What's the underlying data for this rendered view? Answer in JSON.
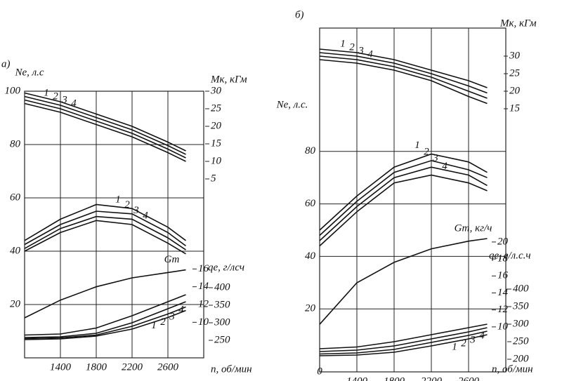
{
  "chart_data": [
    {
      "type": "line",
      "panel": "а)",
      "color": "#111",
      "ylabel": "Ne, л.с",
      "y2label": "Mк, кГм",
      "y4label": "qe, г/лсч",
      "xlabel": "n, об/мин",
      "x": [
        1000,
        1400,
        1800,
        2200,
        2600,
        2800
      ],
      "xlim": [
        1000,
        3000
      ],
      "xticks": [
        1400,
        1800,
        2200,
        2600
      ],
      "ylim": [
        0,
        100
      ],
      "yticks": [
        20,
        40,
        60,
        80,
        100
      ],
      "y2lim": [
        -46,
        30
      ],
      "y2ticks": [
        5,
        10,
        15,
        20,
        25,
        30
      ],
      "y3lim": [
        6,
        36
      ],
      "y3ticks": [
        10,
        12,
        14,
        16
      ],
      "y4lim": [
        200,
        960
      ],
      "y4ticks": [
        250,
        300,
        350,
        400
      ],
      "grid": true,
      "series": [
        {
          "name": "1",
          "axis": "y2",
          "values": [
            29.5,
            27,
            23.5,
            20,
            15.5,
            13
          ]
        },
        {
          "name": "2",
          "axis": "y2",
          "values": [
            28.5,
            26,
            22.5,
            19,
            14.5,
            12
          ]
        },
        {
          "name": "3",
          "axis": "y2",
          "values": [
            27.5,
            25,
            21.5,
            18,
            13.5,
            11
          ]
        },
        {
          "name": "4",
          "axis": "y2",
          "values": [
            26.5,
            24,
            20.5,
            17,
            12.5,
            10
          ]
        },
        {
          "name": "1",
          "axis": "y",
          "values": [
            44,
            52,
            57.5,
            56,
            49,
            44
          ]
        },
        {
          "name": "2",
          "axis": "y",
          "values": [
            42.5,
            50,
            55,
            54,
            47,
            42
          ]
        },
        {
          "name": "3",
          "axis": "y",
          "values": [
            41,
            48.5,
            53,
            52,
            45,
            40.5
          ]
        },
        {
          "name": "4",
          "axis": "y",
          "values": [
            40,
            47,
            51.5,
            50,
            43,
            39
          ]
        },
        {
          "name": "Gт",
          "axis": "y3",
          "values": [
            10.5,
            12.5,
            14,
            15,
            15.6,
            15.9
          ]
        },
        {
          "name": "1",
          "axis": "y4",
          "values": [
            252,
            254,
            262,
            282,
            315,
            335
          ]
        },
        {
          "name": "2",
          "axis": "y4",
          "values": [
            255,
            257,
            265,
            290,
            325,
            345
          ]
        },
        {
          "name": "3",
          "axis": "y4",
          "values": [
            258,
            260,
            270,
            300,
            340,
            360
          ]
        },
        {
          "name": "4",
          "axis": "y4",
          "values": [
            265,
            268,
            285,
            320,
            360,
            380
          ]
        }
      ]
    },
    {
      "type": "line",
      "panel": "б)",
      "color": "#111",
      "ylabel": "Ne, л.с.",
      "y2label": "Mк, кГм",
      "y4label": "qe, г/л.с.ч",
      "xlabel": "n, об/мин",
      "origin_label": "0",
      "x": [
        1000,
        1400,
        1800,
        2200,
        2600,
        2800
      ],
      "xlim": [
        1000,
        3000
      ],
      "xticks": [
        1400,
        1800,
        2200,
        2600
      ],
      "ylim": [
        -4,
        127
      ],
      "yticks": [
        20,
        40,
        60,
        80
      ],
      "y2lim": [
        -60,
        38
      ],
      "y2ticks": [
        15,
        20,
        25,
        30
      ],
      "y3lim": [
        4.7,
        45.2
      ],
      "y3ticks": [
        10,
        12,
        14,
        16,
        18,
        20
      ],
      "y4lim": [
        164,
        1144
      ],
      "y4ticks": [
        200,
        250,
        300,
        350,
        400
      ],
      "grid": true,
      "series": [
        {
          "name": "1",
          "axis": "y2",
          "values": [
            32,
            31,
            29,
            26,
            23,
            21
          ]
        },
        {
          "name": "2",
          "axis": "y2",
          "values": [
            31,
            30,
            28,
            25,
            21.5,
            19.5
          ]
        },
        {
          "name": "3",
          "axis": "y2",
          "values": [
            30,
            29,
            27,
            24,
            20,
            18
          ]
        },
        {
          "name": "4",
          "axis": "y2",
          "values": [
            29,
            28,
            26,
            23,
            18.5,
            16.5
          ]
        },
        {
          "name": "1",
          "axis": "y",
          "values": [
            50,
            63,
            74,
            79,
            76,
            72
          ]
        },
        {
          "name": "2",
          "axis": "y",
          "values": [
            48,
            61,
            72,
            76.5,
            73,
            70
          ]
        },
        {
          "name": "3",
          "axis": "y",
          "values": [
            46,
            59,
            70,
            74,
            71,
            67
          ]
        },
        {
          "name": "4",
          "axis": "y",
          "values": [
            44,
            57,
            68,
            71,
            68,
            65
          ]
        },
        {
          "name": "Gт, кг/ч",
          "axis": "y3",
          "values": [
            10.3,
            15.2,
            17.6,
            19.2,
            20.1,
            20.4
          ]
        },
        {
          "name": "1",
          "axis": "y4",
          "values": [
            210,
            212,
            220,
            238,
            258,
            270
          ]
        },
        {
          "name": "2",
          "axis": "y4",
          "values": [
            215,
            218,
            228,
            248,
            268,
            280
          ]
        },
        {
          "name": "3",
          "axis": "y4",
          "values": [
            222,
            226,
            238,
            258,
            278,
            290
          ]
        },
        {
          "name": "4",
          "axis": "y4",
          "values": [
            230,
            235,
            250,
            270,
            290,
            300
          ]
        }
      ]
    }
  ]
}
